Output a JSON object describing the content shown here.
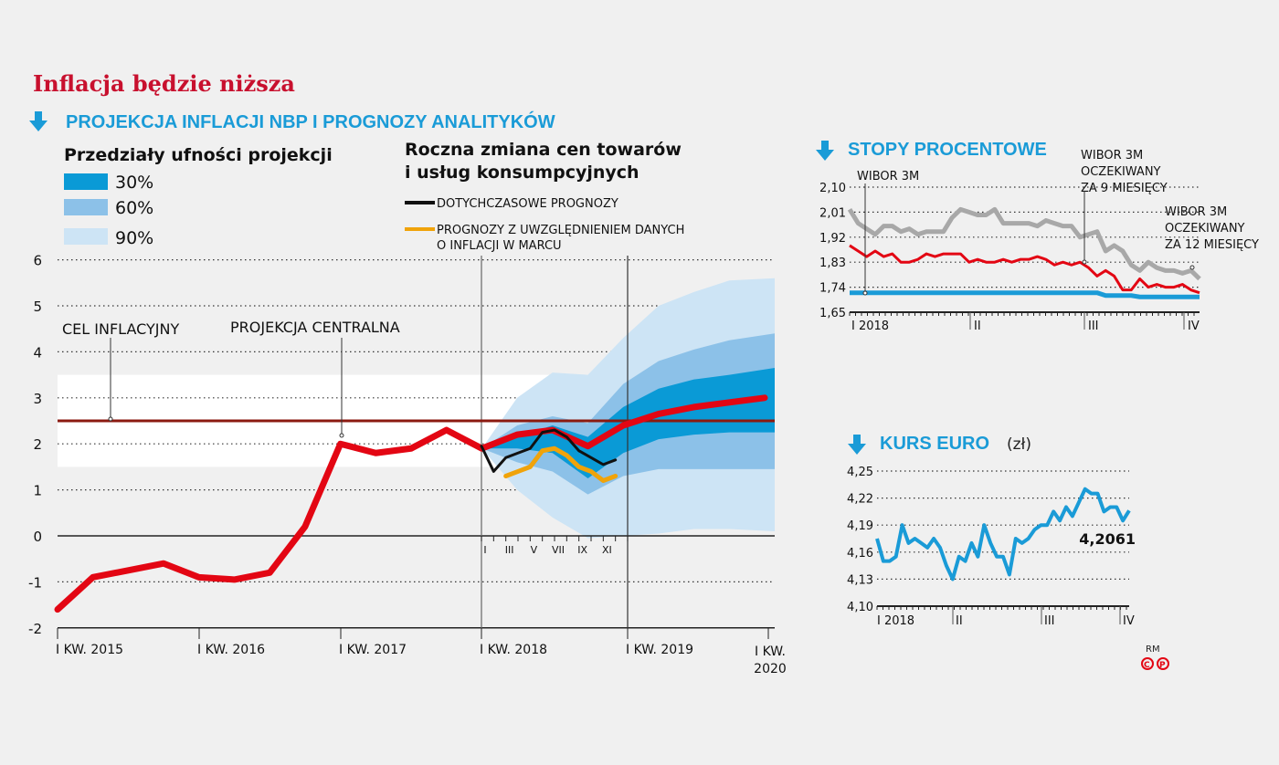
{
  "title": "Inflacja będzie niższa",
  "colors": {
    "accent_blue": "#1a9bd7",
    "red": "#e30613",
    "target": "#8b1a10",
    "band30": "#0a9ad6",
    "band60": "#8cc1e8",
    "band90": "#cde4f5",
    "black": "#111111",
    "orange": "#f0a30a",
    "gray": "#a8a8a8",
    "euro": "#1a9bd7"
  },
  "icons": [
    "arrow-down-icon"
  ],
  "chart_data": [
    {
      "type": "area",
      "title": "PROJEKCJA INFLACJI NBP I PROGNOZY ANALITYKÓW",
      "legend_bands_title": "Przedziały ufności projekcji",
      "legend_bands": [
        "30%",
        "60%",
        "90%"
      ],
      "legend_lines_title": [
        "Roczna zmiana cen towarów",
        "i usług konsumpcyjnych"
      ],
      "legend_lines": [
        "DOTYCHCZASOWE PROGNOZY",
        [
          "PROGNOZY Z UWZGLĘDNIENIEM DANYCH",
          "O INFLACJI W MARCU"
        ]
      ],
      "annotations": [
        "CEL INFLACYJNY",
        "PROJEKCJA CENTRALNA"
      ],
      "ylim": [
        -2,
        6
      ],
      "yticks": [
        "6",
        "5",
        "4",
        "3",
        "2",
        "1",
        "0",
        "-1",
        "-2"
      ],
      "xticks": [
        "I KW. 2015",
        "I KW. 2016",
        "I KW. 2017",
        "I KW. 2018",
        "I KW. 2019",
        [
          "I KW.",
          "2020"
        ]
      ],
      "month_ticks": [
        "I",
        "III",
        "V",
        "VII",
        "IX",
        "XI"
      ],
      "target": 2.5,
      "target_band": [
        1.5,
        3.5
      ],
      "grid": true,
      "quarters_from": "I KW. 2015",
      "central_projection": [
        -1.6,
        -0.9,
        -0.75,
        -0.6,
        -0.9,
        -0.95,
        -0.8,
        0.2,
        2.0,
        1.8,
        1.9,
        2.3,
        1.9,
        2.2,
        2.3,
        1.95,
        2.4,
        2.65,
        2.8,
        2.9,
        3.0
      ],
      "bands_from_quarter": 12,
      "band90": {
        "upper": [
          1.9,
          3.0,
          3.55,
          3.5,
          4.3,
          5.0,
          5.3,
          5.55,
          5.6
        ],
        "lower": [
          1.9,
          1.0,
          0.4,
          -0.05,
          0.0,
          0.05,
          0.15,
          0.15,
          0.1
        ]
      },
      "band60": {
        "upper": [
          1.9,
          2.4,
          2.6,
          2.45,
          3.3,
          3.8,
          4.05,
          4.25,
          4.4
        ],
        "lower": [
          1.9,
          1.6,
          1.4,
          0.9,
          1.3,
          1.45,
          1.45,
          1.45,
          1.45
        ]
      },
      "band30": {
        "upper": [
          1.9,
          2.15,
          2.4,
          2.15,
          2.8,
          3.2,
          3.4,
          3.5,
          3.65
        ],
        "lower": [
          1.9,
          1.9,
          1.8,
          1.25,
          1.8,
          2.1,
          2.2,
          2.25,
          2.25
        ]
      },
      "previous_forecasts_2018_monthly": [
        1.95,
        1.4,
        1.7,
        1.8,
        1.9,
        2.25,
        2.3,
        2.15,
        1.85,
        1.7,
        1.55,
        1.65
      ],
      "march_forecasts_2018_monthly_from_III": [
        1.3,
        1.4,
        1.5,
        1.85,
        1.9,
        1.75,
        1.5,
        1.4,
        1.2,
        1.3
      ]
    },
    {
      "type": "line",
      "title": "STOPY PROCENTOWE",
      "ylim": [
        1.65,
        2.1
      ],
      "yticks": [
        "2,10",
        "2,01",
        "1,92",
        "1,83",
        "1,74",
        "1,65"
      ],
      "xticks": [
        "I 2018",
        "II",
        "III",
        "IV"
      ],
      "grid": true,
      "series": [
        {
          "name": "WIBOR 3M OCZEKIWANY ZA 12 MIESIĘCY",
          "color": "#a8a8a8",
          "values": [
            2.02,
            1.97,
            1.95,
            1.93,
            1.96,
            1.96,
            1.94,
            1.95,
            1.93,
            1.94,
            1.94,
            1.94,
            1.99,
            2.02,
            2.01,
            2.0,
            2.0,
            2.02,
            1.97,
            1.97,
            1.97,
            1.97,
            1.96,
            1.98,
            1.97,
            1.96,
            1.96,
            1.92,
            1.93,
            1.94,
            1.87,
            1.89,
            1.87,
            1.82,
            1.8,
            1.83,
            1.81,
            1.8,
            1.8,
            1.79,
            1.8,
            1.77
          ]
        },
        {
          "name": "WIBOR 3M OCZEKIWANY ZA 9 MIESIĘCY",
          "color": "#e30613",
          "values": [
            1.89,
            1.87,
            1.85,
            1.87,
            1.85,
            1.86,
            1.83,
            1.83,
            1.84,
            1.86,
            1.85,
            1.86,
            1.86,
            1.86,
            1.83,
            1.84,
            1.83,
            1.83,
            1.84,
            1.83,
            1.84,
            1.84,
            1.85,
            1.84,
            1.82,
            1.83,
            1.82,
            1.83,
            1.81,
            1.78,
            1.8,
            1.78,
            1.73,
            1.73,
            1.77,
            1.74,
            1.75,
            1.74,
            1.74,
            1.75,
            1.73,
            1.72
          ]
        },
        {
          "name": "WIBOR 3M",
          "color": "#1a9bd7",
          "values": [
            1.72,
            1.72,
            1.72,
            1.72,
            1.72,
            1.72,
            1.72,
            1.72,
            1.72,
            1.72,
            1.72,
            1.72,
            1.72,
            1.72,
            1.72,
            1.72,
            1.72,
            1.72,
            1.72,
            1.72,
            1.72,
            1.72,
            1.72,
            1.72,
            1.72,
            1.72,
            1.72,
            1.72,
            1.72,
            1.72,
            1.71,
            1.71,
            1.71,
            1.71,
            1.705,
            1.705,
            1.705,
            1.705,
            1.705,
            1.705,
            1.705,
            1.705
          ]
        }
      ],
      "labels": {
        "wibor": "WIBOR 3M",
        "wibor9": [
          "WIBOR 3M",
          "OCZEKIWANY",
          "ZA 9 MIESIĘCY"
        ],
        "wibor12": [
          "WIBOR 3M",
          "OCZEKIWANY",
          "ZA 12 MIESIĘCY"
        ]
      }
    },
    {
      "type": "line",
      "title": "KURS EURO",
      "unit": "(zł)",
      "ylim": [
        4.1,
        4.25
      ],
      "yticks": [
        "4,25",
        "4,22",
        "4,19",
        "4,16",
        "4,13",
        "4,10"
      ],
      "xticks": [
        "I 2018",
        "II",
        "III",
        "IV"
      ],
      "grid": true,
      "values": [
        4.175,
        4.15,
        4.15,
        4.155,
        4.19,
        4.17,
        4.175,
        4.17,
        4.165,
        4.175,
        4.165,
        4.145,
        4.13,
        4.155,
        4.15,
        4.17,
        4.155,
        4.19,
        4.17,
        4.155,
        4.155,
        4.135,
        4.175,
        4.17,
        4.175,
        4.185,
        4.19,
        4.19,
        4.205,
        4.195,
        4.21,
        4.2,
        4.215,
        4.23,
        4.225,
        4.225,
        4.205,
        4.21,
        4.21,
        4.195,
        4.2061
      ],
      "last_value_label": "4,2061"
    }
  ],
  "credit": "RM",
  "logo_text": "CP"
}
